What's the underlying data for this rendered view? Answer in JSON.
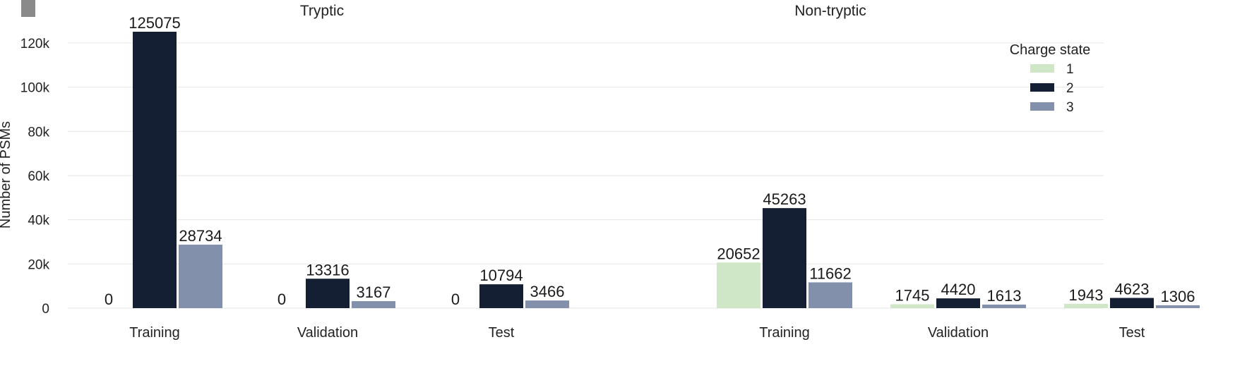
{
  "chart_data": {
    "type": "bar",
    "ylabel": "Number of PSMs",
    "ylim": [
      0,
      125075
    ],
    "yticks": [
      0,
      20000,
      40000,
      60000,
      80000,
      100000,
      120000
    ],
    "ytick_labels": [
      "0",
      "20k",
      "40k",
      "60k",
      "80k",
      "100k",
      "120k"
    ],
    "grid": true,
    "legend": {
      "title": "Charge state",
      "placement": "top-right",
      "entries": [
        "1",
        "2",
        "3"
      ]
    },
    "colors": [
      "#cfe6c7",
      "#141f33",
      "#8390ac"
    ],
    "panels": [
      {
        "title": "Tryptic",
        "categories": [
          "Training",
          "Validation",
          "Test"
        ],
        "series": [
          {
            "name": "1",
            "values": [
              0,
              0,
              0
            ]
          },
          {
            "name": "2",
            "values": [
              125075,
              13316,
              10794
            ]
          },
          {
            "name": "3",
            "values": [
              28734,
              3167,
              3466
            ]
          }
        ]
      },
      {
        "title": "Non-tryptic",
        "categories": [
          "Training",
          "Validation",
          "Test"
        ],
        "series": [
          {
            "name": "1",
            "values": [
              20652,
              1745,
              1943
            ]
          },
          {
            "name": "2",
            "values": [
              45263,
              4420,
              4623
            ]
          },
          {
            "name": "3",
            "values": [
              11662,
              1613,
              1306
            ]
          }
        ]
      }
    ]
  }
}
